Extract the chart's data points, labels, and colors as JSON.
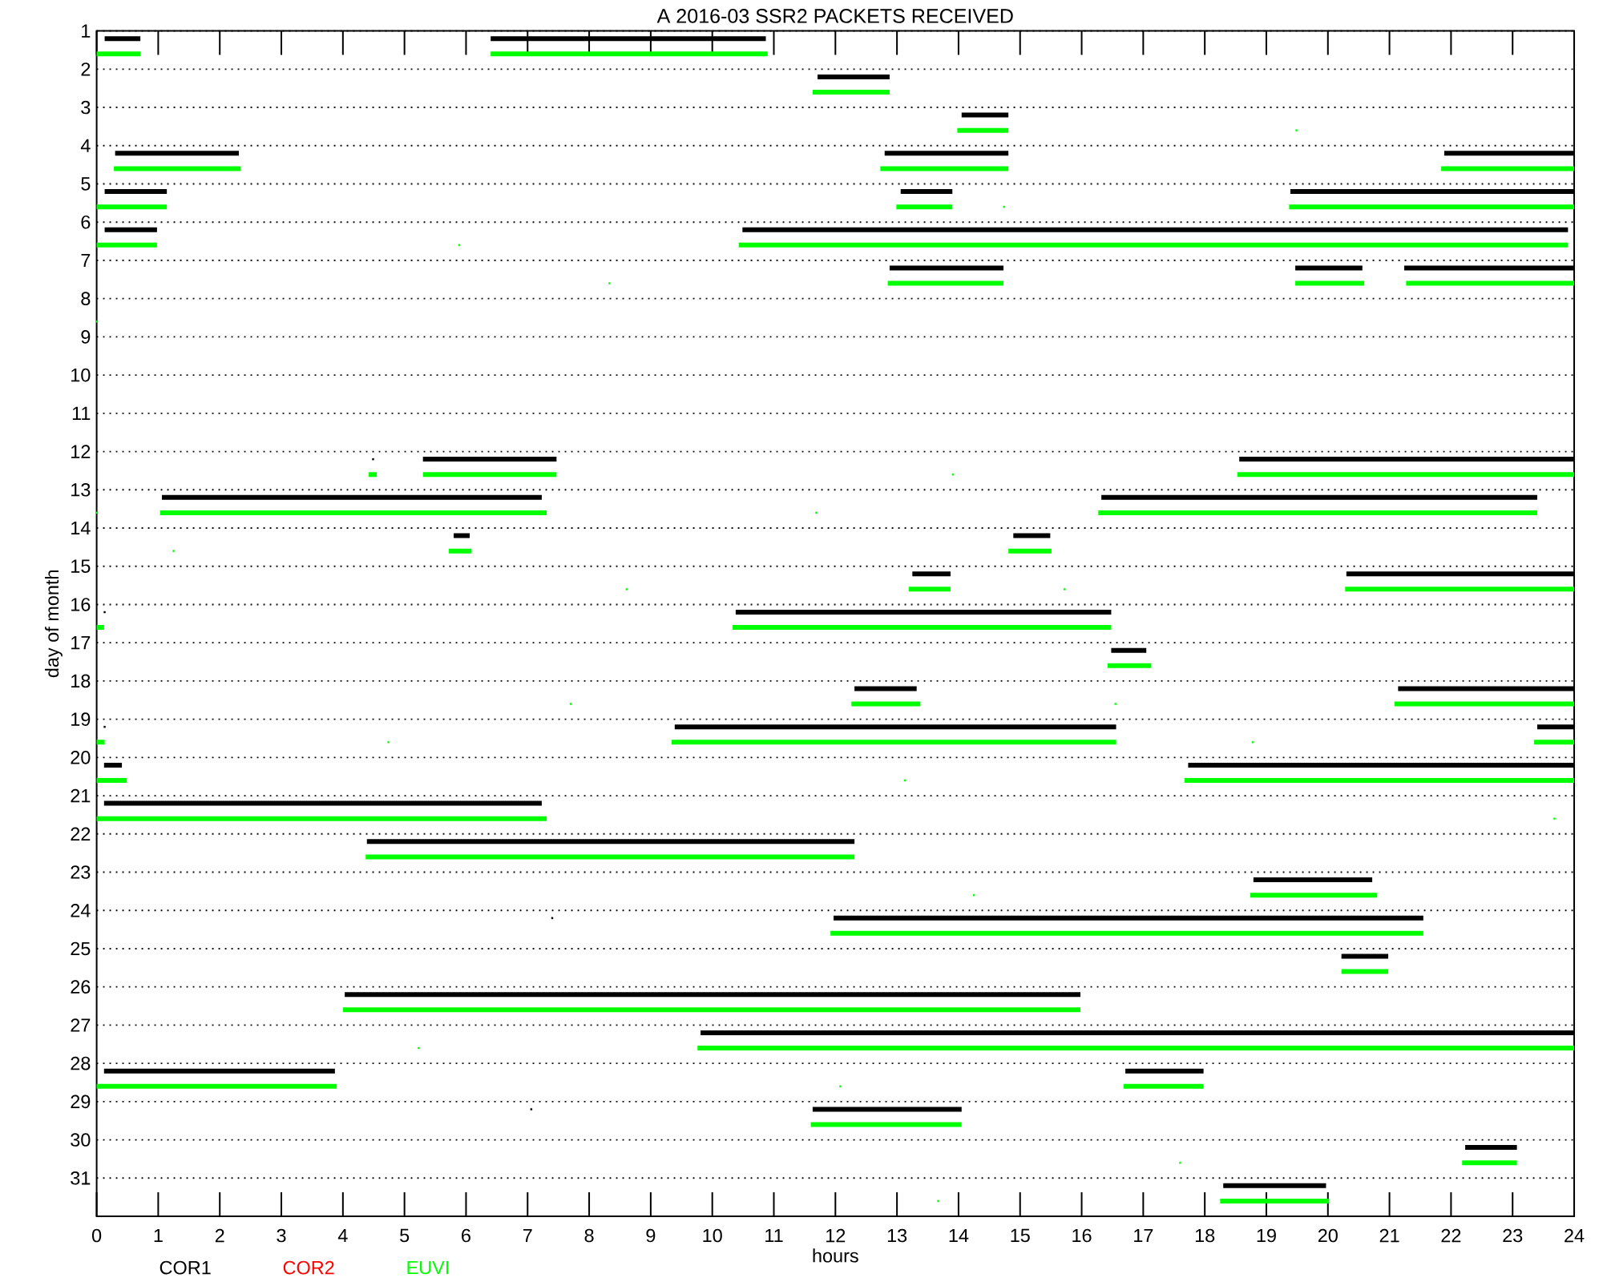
{
  "chart_data": {
    "type": "line",
    "title": "A  2016-03 SSR2 PACKETS RECEIVED",
    "xlabel": "hours",
    "ylabel": "day of month",
    "xlim": [
      0,
      24
    ],
    "xticks": [
      0,
      1,
      2,
      3,
      4,
      5,
      6,
      7,
      8,
      9,
      10,
      11,
      12,
      13,
      14,
      15,
      16,
      17,
      18,
      19,
      20,
      21,
      22,
      23,
      24
    ],
    "ylim": [
      32,
      1
    ],
    "yticks": [
      1,
      2,
      3,
      4,
      5,
      6,
      7,
      8,
      9,
      10,
      11,
      12,
      13,
      14,
      15,
      16,
      17,
      18,
      19,
      20,
      21,
      22,
      23,
      24,
      25,
      26,
      27,
      28,
      29,
      30,
      31
    ],
    "grid": "y",
    "legend": "bottom left",
    "series": [
      {
        "name": "COR1",
        "color": "#000000",
        "x": [
          0.13,
          0.71,
          null,
          6.4,
          10.87,
          null,
          11.71,
          12.88,
          null,
          14.05,
          14.81,
          null,
          0.3,
          2.31,
          null,
          12.8,
          14.81,
          null,
          21.89,
          24,
          null,
          0.13,
          1.14,
          null,
          13.06,
          13.9,
          null,
          19.39,
          24,
          null,
          0.13,
          0.98,
          null,
          10.49,
          23.9,
          null,
          12.88,
          14.73,
          null,
          19.47,
          20.56,
          null,
          21.24,
          24,
          null,
          5.3,
          7.47,
          null,
          18.56,
          24,
          null,
          1.06,
          7.23,
          null,
          16.32,
          23.4,
          null,
          5.8,
          6.06,
          null,
          14.89,
          15.49,
          null,
          13.25,
          13.87,
          null,
          20.3,
          24,
          null,
          10.38,
          16.48,
          null,
          16.48,
          17.05,
          null,
          12.31,
          13.32,
          null,
          21.14,
          24,
          null,
          9.39,
          16.56,
          null,
          23.4,
          24,
          null,
          0.12,
          0.41,
          null,
          17.73,
          24,
          null,
          0.12,
          7.23,
          null,
          4.39,
          12.31,
          null,
          18.79,
          20.72,
          null,
          11.97,
          21.55,
          null,
          20.22,
          20.98,
          null,
          4.03,
          15.98,
          null,
          9.81,
          24,
          null,
          0.12,
          3.87,
          null,
          16.71,
          17.98,
          null,
          11.63,
          14.05,
          null,
          22.23,
          23.07,
          null,
          18.3,
          19.97
        ],
        "values": [
          1.2,
          1.2,
          null,
          1.2,
          1.2,
          null,
          2.2,
          2.2,
          null,
          3.2,
          3.2,
          null,
          4.2,
          4.2,
          null,
          4.2,
          4.2,
          null,
          4.2,
          4.2,
          null,
          5.2,
          5.2,
          null,
          5.2,
          5.2,
          null,
          5.2,
          5.2,
          null,
          6.2,
          6.2,
          null,
          6.2,
          6.2,
          null,
          7.2,
          7.2,
          null,
          7.2,
          7.2,
          null,
          7.2,
          7.2,
          null,
          12.2,
          12.2,
          null,
          12.2,
          12.2,
          null,
          13.2,
          13.2,
          null,
          13.2,
          13.2,
          null,
          14.2,
          14.2,
          null,
          14.2,
          14.2,
          null,
          15.2,
          15.2,
          null,
          15.2,
          15.2,
          null,
          16.2,
          16.2,
          null,
          17.2,
          17.2,
          null,
          18.2,
          18.2,
          null,
          18.2,
          18.2,
          null,
          19.2,
          19.2,
          null,
          19.2,
          19.2,
          null,
          20.2,
          20.2,
          null,
          20.2,
          20.2,
          null,
          21.2,
          21.2,
          null,
          22.2,
          22.2,
          null,
          23.2,
          23.2,
          null,
          24.2,
          24.2,
          null,
          25.2,
          25.2,
          null,
          26.2,
          26.2,
          null,
          27.2,
          27.2,
          null,
          28.2,
          28.2,
          null,
          28.2,
          28.2,
          null,
          29.2,
          29.2,
          null,
          30.2,
          30.2,
          null,
          31.2,
          31.2
        ]
      },
      {
        "name": "COR2",
        "color": "#ff0000"
      },
      {
        "name": "EUVI",
        "color": "#00ff00",
        "x": [
          0,
          0.71,
          null,
          6.4,
          10.9,
          null,
          11.63,
          12.88,
          null,
          13.98,
          14.81,
          null,
          0.28,
          2.34,
          null,
          12.73,
          14.81,
          null,
          21.84,
          24,
          null,
          0,
          1.14,
          null,
          12.99,
          13.9,
          null,
          19.37,
          24,
          null,
          0,
          0.98,
          null,
          10.43,
          23.9,
          null,
          12.85,
          14.73,
          null,
          19.47,
          20.59,
          null,
          21.27,
          24,
          null,
          4.42,
          4.55,
          null,
          5.3,
          7.47,
          null,
          18.53,
          24,
          null,
          1.03,
          7.31,
          null,
          16.27,
          23.4,
          null,
          5.72,
          6.09,
          null,
          14.81,
          15.51,
          null,
          13.19,
          13.87,
          null,
          20.28,
          24,
          null,
          0,
          0.12,
          null,
          10.33,
          16.48,
          null,
          16.42,
          17.13,
          null,
          12.26,
          13.38,
          null,
          21.08,
          24,
          null,
          0,
          0.13,
          null,
          9.34,
          16.56,
          null,
          23.35,
          24,
          null,
          0,
          0.49,
          null,
          17.67,
          24,
          null,
          0,
          7.31,
          null,
          4.37,
          12.31,
          null,
          18.74,
          20.8,
          null,
          11.92,
          21.55,
          null,
          20.22,
          20.98,
          null,
          4,
          15.98,
          null,
          9.76,
          24,
          null,
          0,
          3.9,
          null,
          16.68,
          17.98,
          null,
          11.6,
          14.05,
          null,
          22.18,
          23.07,
          null,
          18.25,
          20.02
        ],
        "values": [
          1.6,
          1.6,
          null,
          1.6,
          1.6,
          null,
          2.6,
          2.6,
          null,
          3.6,
          3.6,
          null,
          4.6,
          4.6,
          null,
          4.6,
          4.6,
          null,
          4.6,
          4.6,
          null,
          5.6,
          5.6,
          null,
          5.6,
          5.6,
          null,
          5.6,
          5.6,
          null,
          6.6,
          6.6,
          null,
          6.6,
          6.6,
          null,
          7.6,
          7.6,
          null,
          7.6,
          7.6,
          null,
          7.6,
          7.6,
          null,
          12.6,
          12.6,
          null,
          12.6,
          12.6,
          null,
          12.6,
          12.6,
          null,
          13.6,
          13.6,
          null,
          13.6,
          13.6,
          null,
          14.6,
          14.6,
          null,
          14.6,
          14.6,
          null,
          15.6,
          15.6,
          null,
          15.6,
          15.6,
          null,
          16.6,
          16.6,
          null,
          16.6,
          16.6,
          null,
          17.6,
          17.6,
          null,
          18.6,
          18.6,
          null,
          18.6,
          18.6,
          null,
          19.6,
          19.6,
          null,
          19.6,
          19.6,
          null,
          19.6,
          19.6,
          null,
          20.6,
          20.6,
          null,
          20.6,
          20.6,
          null,
          21.6,
          21.6,
          null,
          22.6,
          22.6,
          null,
          23.6,
          23.6,
          null,
          24.6,
          24.6,
          null,
          25.6,
          25.6,
          null,
          26.6,
          26.6,
          null,
          27.6,
          27.6,
          null,
          28.6,
          28.6,
          null,
          28.6,
          28.6,
          null,
          29.6,
          29.6,
          null,
          30.6,
          30.6,
          null,
          31.6,
          31.6
        ]
      },
      {
        "type": "scatter",
        "marker": "square",
        "color": "#00ff00",
        "x": [
          19.49,
          14.74,
          5.89,
          8.33,
          0,
          13.91,
          0,
          11.69,
          1.25,
          8.61,
          15.72,
          7.7,
          16.55,
          4.74,
          18.78,
          13.13,
          23.68,
          14.25,
          5.23,
          12.08,
          17.6,
          13.67
        ],
        "values": [
          3.6,
          5.6,
          6.6,
          7.6,
          8.6,
          12.6,
          13.6,
          13.6,
          14.6,
          15.6,
          15.6,
          18.6,
          18.6,
          19.6,
          19.6,
          20.6,
          21.6,
          23.6,
          27.6,
          28.6,
          30.6,
          31.6
        ]
      },
      {
        "type": "scatter",
        "marker": "square",
        "color": "#000000",
        "x": [
          4.49,
          0.13,
          0.13,
          7.4,
          7.06
        ],
        "values": [
          12.2,
          16.2,
          19.2,
          24.2,
          29.2
        ]
      }
    ]
  }
}
